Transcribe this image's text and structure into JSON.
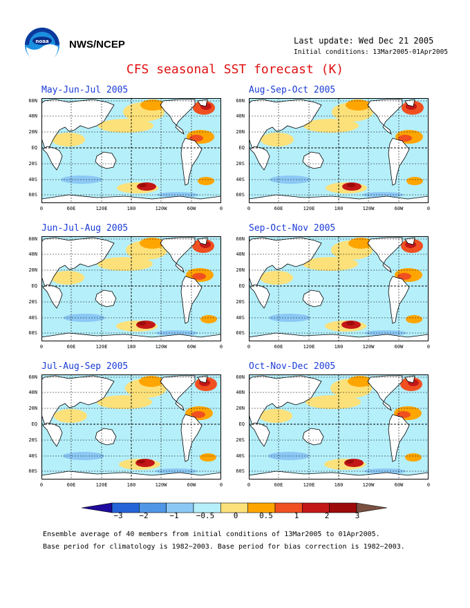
{
  "header": {
    "org_label": "NWS/NCEP",
    "last_update": "Last update: Wed Dec 21 2005",
    "initial_conditions": "Initial conditions: 13Mar2005-01Apr2005",
    "title": "CFS seasonal SST forecast (K)"
  },
  "panels": [
    {
      "title": "May-Jun-Jul 2005"
    },
    {
      "title": "Aug-Sep-Oct 2005"
    },
    {
      "title": "Jun-Jul-Aug 2005"
    },
    {
      "title": "Sep-Oct-Nov 2005"
    },
    {
      "title": "Jul-Aug-Sep 2005"
    },
    {
      "title": "Oct-Nov-Dec 2005"
    }
  ],
  "lat_labels": [
    "60N",
    "40N",
    "20N",
    "EQ",
    "20S",
    "40S",
    "60S"
  ],
  "lon_labels": [
    "0",
    "60E",
    "120E",
    "180",
    "120W",
    "60W",
    "0"
  ],
  "colorbar": {
    "labels": [
      "−3",
      "−2",
      "−1",
      "−0.5",
      "0",
      "0.5",
      "1",
      "2",
      "3"
    ],
    "colors": [
      "#1f0a9e",
      "#2464d8",
      "#5096e6",
      "#8cc8f5",
      "#b5effa",
      "#fce17a",
      "#ffa500",
      "#f05020",
      "#c31717",
      "#9c0a0a",
      "#7a5040"
    ]
  },
  "footer": {
    "line1": "Ensemble average of 40 members from initial conditions of 13Mar2005 to 01Apr2005.",
    "line2": "Base period for climatology is 1982−2003. Base period for bias correction is 1982−2003."
  }
}
